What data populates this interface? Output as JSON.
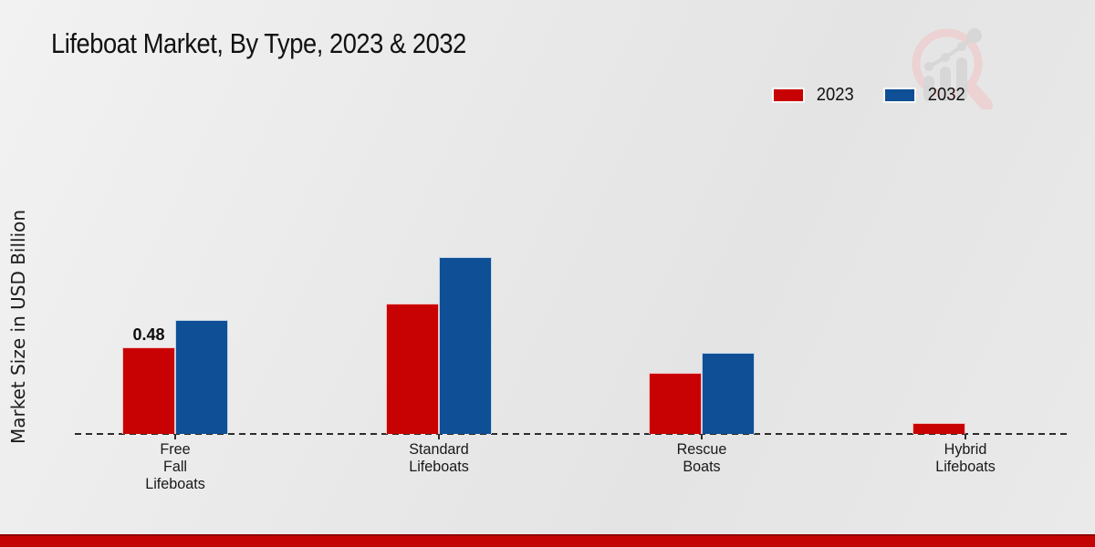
{
  "title": "Lifeboat Market, By Type, 2023 & 2032",
  "y_axis_label": "Market Size in USD Billion",
  "legend": [
    {
      "label": "2023",
      "color": "#c80202"
    },
    {
      "label": "2032",
      "color": "#0f4f96"
    }
  ],
  "colors": {
    "series_2023": "#c80202",
    "series_2032": "#0f4f96",
    "background": "#e9e9e9",
    "footer_bar": "#c40404",
    "axis_line": "#2d2d2d",
    "watermark_pink": "#ecd2d2",
    "watermark_gray": "#d7d7d7"
  },
  "watermark": {
    "name": "market-research-magnifier-logo"
  },
  "chart_data": {
    "type": "bar",
    "title": "Lifeboat Market, By Type, 2023 & 2032",
    "xlabel": "",
    "ylabel": "Market Size in USD Billion",
    "categories": [
      "Free Fall Lifeboats",
      "Standard Lifeboats",
      "Rescue Boats",
      "Hybrid Lifeboats"
    ],
    "category_label_lines": [
      [
        "Free",
        "Fall",
        "Lifeboats"
      ],
      [
        "Standard",
        "Lifeboats"
      ],
      [
        "Rescue",
        "Boats"
      ],
      [
        "Hybrid",
        "Lifeboats"
      ]
    ],
    "series": [
      {
        "name": "2023",
        "color": "#c80202",
        "values": [
          0.48,
          0.72,
          0.34,
          0.06
        ]
      },
      {
        "name": "2032",
        "color": "#0f4f96",
        "values": [
          0.63,
          0.98,
          0.45,
          0
        ]
      }
    ],
    "annotations": [
      {
        "category_index": 0,
        "series_index": 0,
        "text": "0.48"
      }
    ],
    "ylim": [
      0,
      1.05
    ],
    "gridlines": false,
    "y_axis_ticks_visible": false,
    "baseline_style": "dashed",
    "legend_position": "top-right"
  }
}
